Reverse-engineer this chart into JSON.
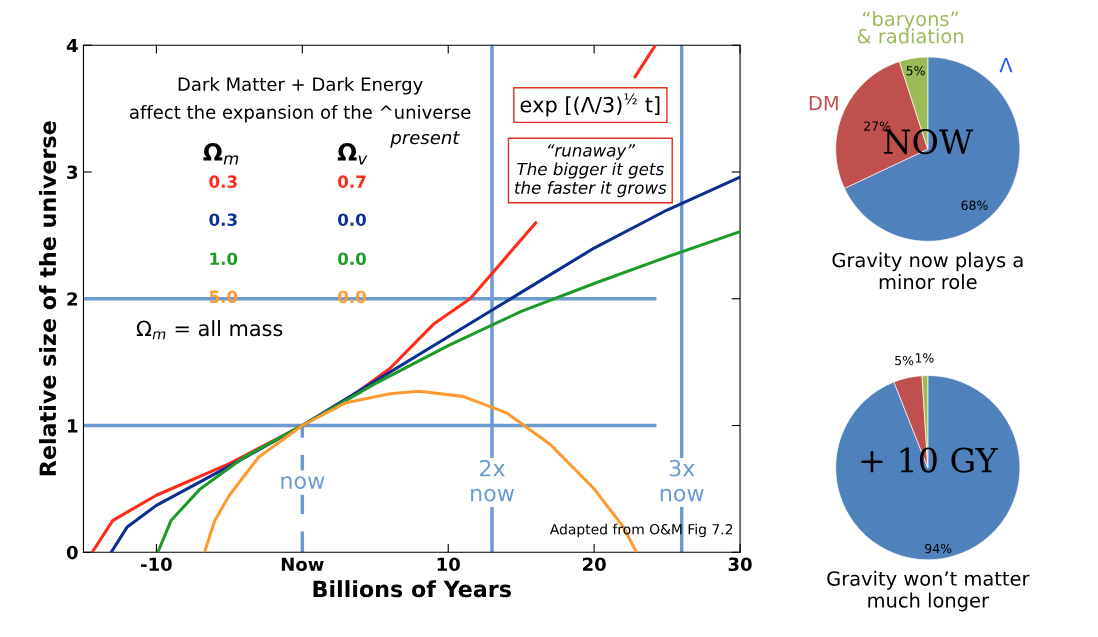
{
  "chart_data": [
    {
      "type": "line",
      "xlabel": "Billions of Years",
      "ylabel": "Relative size of the universe",
      "xlim": [
        -15,
        30
      ],
      "ylim": [
        0,
        4
      ],
      "xticks": [
        -10,
        {
          "value": 0,
          "label": "Now"
        },
        10,
        20,
        30
      ],
      "yticks": [
        0,
        1,
        2,
        3,
        4
      ],
      "grid": false,
      "legend": false,
      "marker": "none",
      "line_style": "solid",
      "series": [
        {
          "color": "#ff2a1a",
          "x": [
            -14.4,
            -13,
            -10,
            -5,
            0,
            3,
            6,
            9,
            11.5,
            13,
            16,
            19,
            22.8,
            24.2
          ],
          "values": [
            0,
            0.25,
            0.45,
            0.7,
            1,
            1.2,
            1.45,
            1.8,
            2,
            2.2,
            2.6,
            null,
            3.75,
            4
          ]
        },
        {
          "color": "#0b2f8f",
          "x": [
            -13.1,
            -12,
            -10,
            -5,
            0,
            5,
            10,
            15,
            20,
            25,
            30
          ],
          "values": [
            0,
            0.2,
            0.37,
            0.68,
            1,
            1.35,
            1.7,
            2.05,
            2.4,
            2.7,
            2.96
          ]
        },
        {
          "color": "#1e9a2a",
          "x": [
            -9.9,
            -9,
            -7,
            -4,
            0,
            5,
            10,
            15,
            20,
            25,
            30
          ],
          "values": [
            0,
            0.25,
            0.5,
            0.75,
            1,
            1.33,
            1.63,
            1.9,
            2.12,
            2.33,
            2.53
          ]
        },
        {
          "color": "#ff9a30",
          "x": [
            -6.7,
            -6,
            -5,
            -3,
            0,
            3,
            6,
            8,
            11,
            14,
            17,
            20,
            22,
            22.9
          ],
          "values": [
            0,
            0.25,
            0.45,
            0.75,
            1,
            1.18,
            1.25,
            1.27,
            1.23,
            1.1,
            0.85,
            0.5,
            0.2,
            0
          ]
        }
      ],
      "ref_lines": [
        {
          "axis": "y",
          "value": 2,
          "label": null,
          "color": "#6b9bd0",
          "line_style": "solid"
        },
        {
          "axis": "y",
          "value": 1,
          "label": null,
          "color": "#6b9bd0",
          "line_style": "solid"
        },
        {
          "axis": "x",
          "value": 0,
          "label": "now",
          "color": "#6b9bd0",
          "line_style": "dashed"
        },
        {
          "axis": "x",
          "value": 13,
          "label": "2x\nnow",
          "color": "#6b9bd0",
          "line_style": "solid"
        },
        {
          "axis": "x",
          "value": 26,
          "label": "3x\nnow",
          "color": "#6b9bd0",
          "line_style": "solid"
        }
      ],
      "annotations": [
        "Dark Matter + Dark Energy",
        "affect the expansion of the ^universe",
        "present",
        "Ω$_{m}$",
        "Ω$_{v}$",
        "0.3",
        "0.7",
        "0.3",
        "0.0",
        "1.0",
        "0.0",
        "5.0",
        "0.0",
        "exp [(Λ/3)$^{½}$ t]",
        "“runaway”\nThe bigger it gets\nthe faster it grows",
        "Ω$_{m}$ = all mass",
        "Adapted from O&M Fig 7.2"
      ]
    },
    {
      "type": "pie",
      "title": "NOW",
      "categories": [
        "Λ",
        "DM",
        "“baryons”\n& radiation"
      ],
      "values": [
        68,
        27,
        5
      ],
      "colors": [
        "#4f81bd",
        "#c0504d",
        "#9bbb59"
      ],
      "value_labels": [
        "68%",
        "27%",
        "5%"
      ],
      "legend": false,
      "annotations": [
        "Gravity now plays a\nminor role"
      ]
    },
    {
      "type": "pie",
      "title": "+ 10 GY",
      "categories": [
        null,
        null,
        null
      ],
      "values": [
        94,
        5,
        1
      ],
      "colors": [
        "#4f81bd",
        "#c0504d",
        "#9bbb59"
      ],
      "value_labels": [
        "94%",
        "5%",
        "1%"
      ],
      "legend": false,
      "annotations": [
        "Gravity won’t matter\nmuch longer"
      ]
    }
  ]
}
